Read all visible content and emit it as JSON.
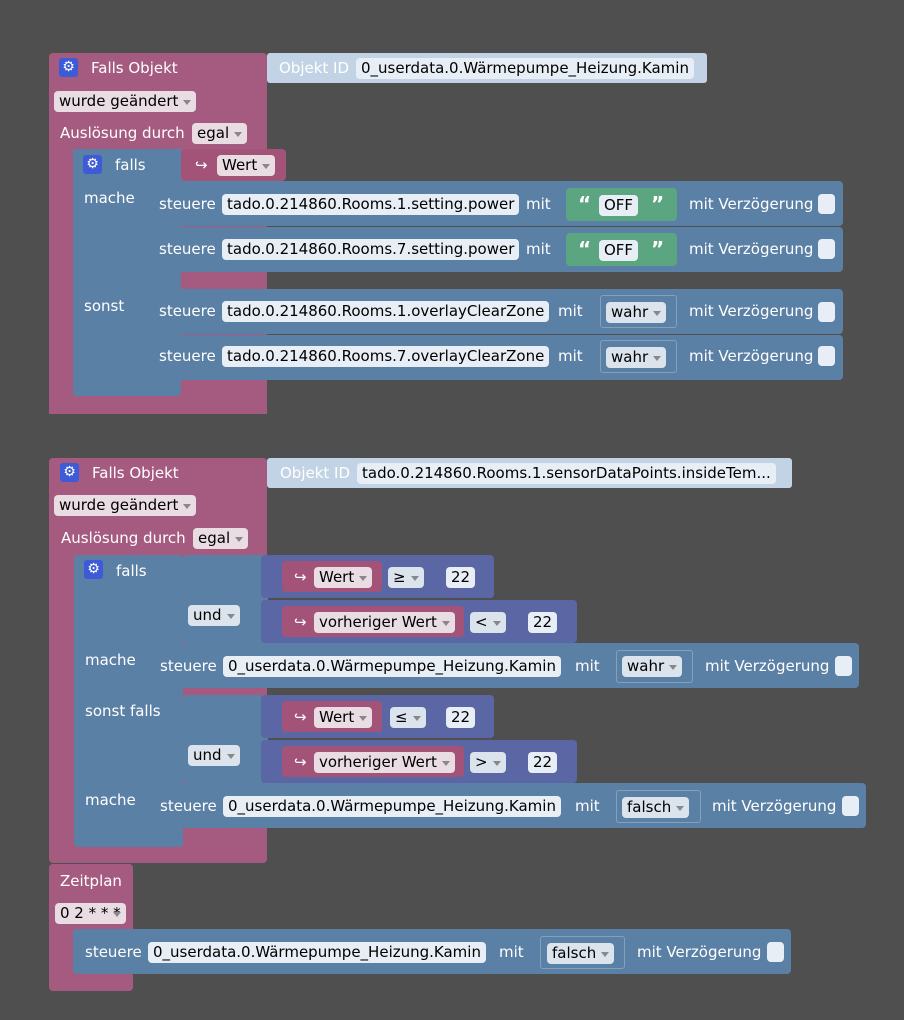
{
  "block1": {
    "title": "Falls Objekt",
    "objid_label": "Objekt ID",
    "objid_value": "0_userdata.0.Wärmepumpe_Heizung.Kamin",
    "trigger": "wurde geändert",
    "ausloesung_label": "Auslösung durch",
    "ausloesung_value": "egal",
    "falls": "falls",
    "cond": "Wert",
    "mache": "mache",
    "sonst": "sonst",
    "rows": [
      {
        "steuere": "steuere",
        "target": "tado.0.214860.Rooms.1.setting.power",
        "mit": "mit",
        "value": "OFF",
        "delay": "mit Verzögerung"
      },
      {
        "steuere": "steuere",
        "target": "tado.0.214860.Rooms.7.setting.power",
        "mit": "mit",
        "value": "OFF",
        "delay": "mit Verzögerung"
      },
      {
        "steuere": "steuere",
        "target": "tado.0.214860.Rooms.1.overlayClearZone",
        "mit": "mit",
        "value": "wahr",
        "delay": "mit Verzögerung"
      },
      {
        "steuere": "steuere",
        "target": "tado.0.214860.Rooms.7.overlayClearZone",
        "mit": "mit",
        "value": "wahr",
        "delay": "mit Verzögerung"
      }
    ]
  },
  "block2": {
    "title": "Falls Objekt",
    "objid_label": "Objekt ID",
    "objid_value": "tado.0.214860.Rooms.1.sensorDataPoints.insideTem...",
    "trigger": "wurde geändert",
    "ausloesung_label": "Auslösung durch",
    "ausloesung_value": "egal",
    "falls": "falls",
    "und": "und",
    "mache": "mache",
    "sonst_falls": "sonst falls",
    "c1": {
      "var": "Wert",
      "op": "≥",
      "num": "22"
    },
    "c2": {
      "var": "vorheriger Wert",
      "op": "<",
      "num": "22"
    },
    "c3": {
      "var": "Wert",
      "op": "≤",
      "num": "22"
    },
    "c4": {
      "var": "vorheriger Wert",
      "op": ">",
      "num": "22"
    },
    "rows": [
      {
        "steuere": "steuere",
        "target": "0_userdata.0.Wärmepumpe_Heizung.Kamin",
        "mit": "mit",
        "value": "wahr",
        "delay": "mit Verzögerung"
      },
      {
        "steuere": "steuere",
        "target": "0_userdata.0.Wärmepumpe_Heizung.Kamin",
        "mit": "mit",
        "value": "falsch",
        "delay": "mit Verzögerung"
      }
    ]
  },
  "block3": {
    "title": "Zeitplan",
    "cron": "0 2 * * *",
    "row": {
      "steuere": "steuere",
      "target": "0_userdata.0.Wärmepumpe_Heizung.Kamin",
      "mit": "mit",
      "value": "falsch",
      "delay": "mit Verzögerung"
    }
  },
  "icons": {
    "gear": "gear-icon",
    "arrow": "return-arrow-icon"
  },
  "colors": {
    "background": "#4f4f4f",
    "trigger": "#a55b80",
    "logic": "#5b80a5",
    "math": "#5b67a5",
    "text": "#5ba580"
  }
}
